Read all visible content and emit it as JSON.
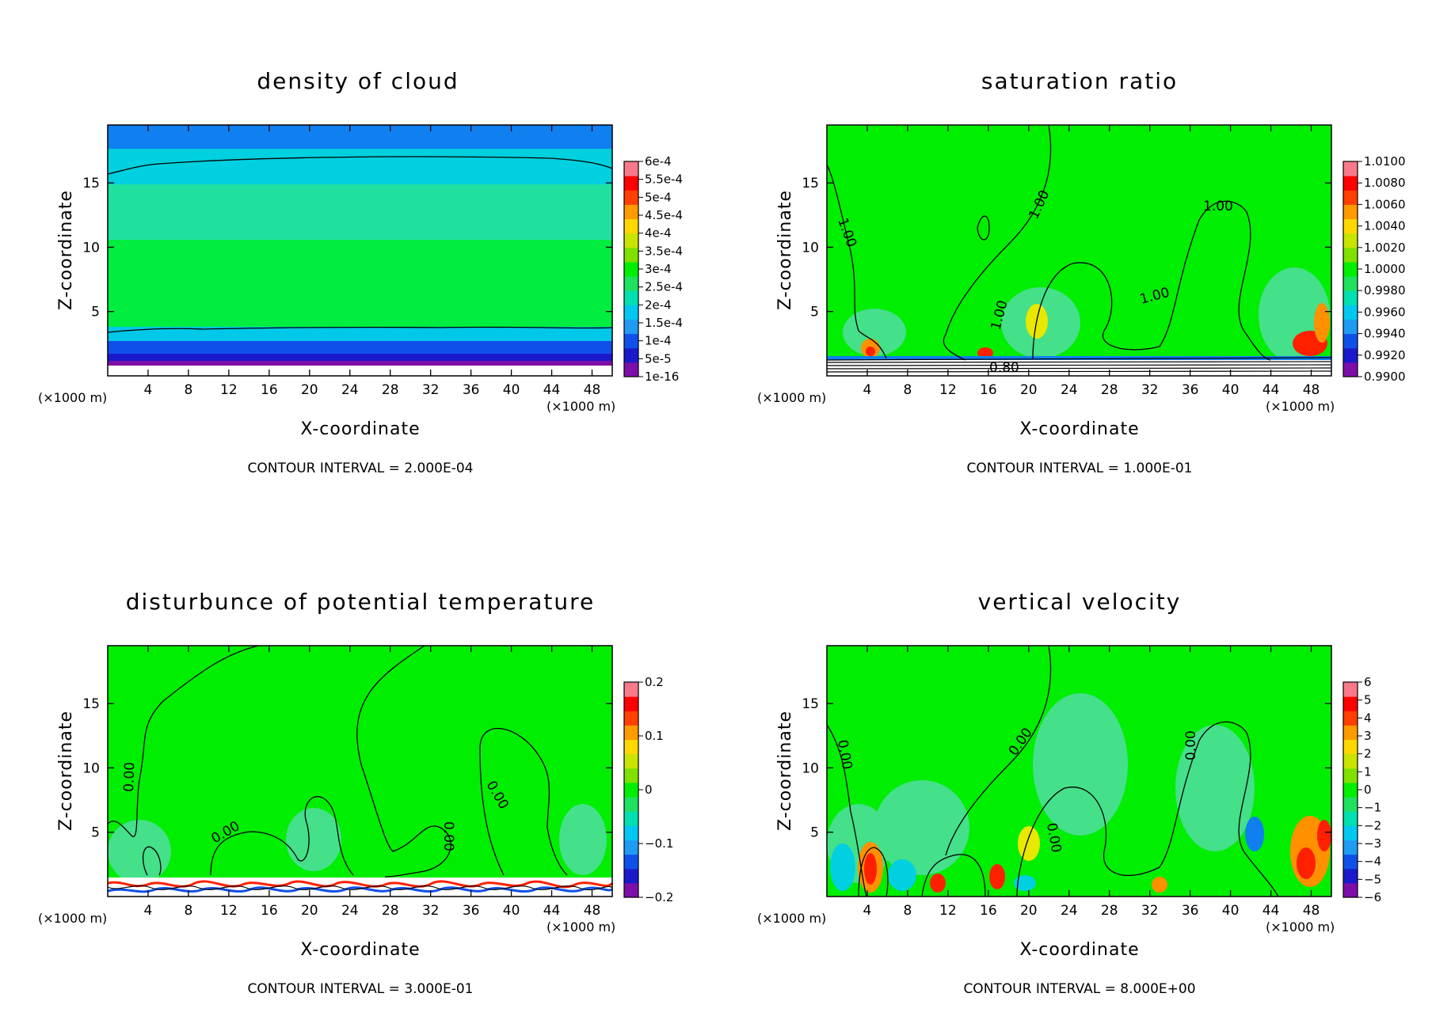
{
  "colors": {
    "field": "#00ee00",
    "light": "#44e08a",
    "cyan": "#00d0e0",
    "blue": "#1080f0",
    "navy": "#0000c0",
    "purple": "#7000b0",
    "yellow": "#e8e800",
    "orange": "#ff9000",
    "red": "#ff2000"
  },
  "colorbar_ramp": [
    "#7d0fa8",
    "#1a1acc",
    "#1050ea",
    "#1f9cf2",
    "#00c8f0",
    "#00e0b0",
    "#20e060",
    "#00ee00",
    "#80e000",
    "#c8e400",
    "#ffd800",
    "#ff9a00",
    "#ff4000",
    "#ff0000",
    "#f87a8a"
  ],
  "chart_data": [
    {
      "type": "heatmap",
      "title": "density of cloud",
      "xlabel": "X-coordinate",
      "ylabel": "Z-coordinate",
      "x_unit": "(×1000 m)",
      "x_ticks": [
        "4",
        "8",
        "12",
        "16",
        "20",
        "24",
        "28",
        "32",
        "36",
        "40",
        "44",
        "48"
      ],
      "x_tick_values": [
        4,
        8,
        12,
        16,
        20,
        24,
        28,
        32,
        36,
        40,
        44,
        48
      ],
      "y_ticks": [
        "5",
        "10",
        "15"
      ],
      "y_tick_values": [
        5,
        10,
        15
      ],
      "xlim": [
        0,
        50
      ],
      "ylim": [
        0,
        19.5
      ],
      "colorbar_labels": [
        "6e-4",
        "5.5e-4",
        "5e-4",
        "4.5e-4",
        "4e-4",
        "3.5e-4",
        "3e-4",
        "2.5e-4",
        "2e-4",
        "1.5e-4",
        "1e-4",
        "5e-5",
        "1e-16"
      ],
      "contour_interval": "CONTOUR INTERVAL = 2.000E-04",
      "contour_labels": []
    },
    {
      "type": "heatmap",
      "title": "saturation ratio",
      "xlabel": "X-coordinate",
      "ylabel": "Z-coordinate",
      "x_unit": "(×1000 m)",
      "x_ticks": [
        "4",
        "8",
        "12",
        "16",
        "20",
        "24",
        "28",
        "32",
        "36",
        "40",
        "44",
        "48"
      ],
      "x_tick_values": [
        4,
        8,
        12,
        16,
        20,
        24,
        28,
        32,
        36,
        40,
        44,
        48
      ],
      "y_ticks": [
        "5",
        "10",
        "15"
      ],
      "y_tick_values": [
        5,
        10,
        15
      ],
      "xlim": [
        0,
        50
      ],
      "ylim": [
        0,
        19.5
      ],
      "colorbar_labels": [
        "1.0100",
        "1.0080",
        "1.0060",
        "1.0040",
        "1.0020",
        "1.0000",
        "0.9980",
        "0.9960",
        "0.9940",
        "0.9920",
        "0.9900"
      ],
      "contour_interval": "CONTOUR INTERVAL = 1.000E-01",
      "contour_labels": [
        "1.00",
        "1.00",
        "1.00",
        "1.00",
        "1.00",
        "0.80"
      ]
    },
    {
      "type": "heatmap",
      "title": "disturbunce of potential temperature",
      "xlabel": "X-coordinate",
      "ylabel": "Z-coordinate",
      "x_unit": "(×1000 m)",
      "x_ticks": [
        "4",
        "8",
        "12",
        "16",
        "20",
        "24",
        "28",
        "32",
        "36",
        "40",
        "44",
        "48"
      ],
      "x_tick_values": [
        4,
        8,
        12,
        16,
        20,
        24,
        28,
        32,
        36,
        40,
        44,
        48
      ],
      "y_ticks": [
        "5",
        "10",
        "15"
      ],
      "y_tick_values": [
        5,
        10,
        15
      ],
      "xlim": [
        0,
        50
      ],
      "ylim": [
        0,
        19.5
      ],
      "colorbar_labels": [
        "0.2",
        "0.1",
        "0",
        "−0.1",
        "−0.2"
      ],
      "contour_interval": "CONTOUR INTERVAL = 3.000E-01",
      "contour_labels": [
        "0.00",
        "0.00",
        "0.00",
        "0.00"
      ]
    },
    {
      "type": "heatmap",
      "title": "vertical velocity",
      "xlabel": "X-coordinate",
      "ylabel": "Z-coordinate",
      "x_unit": "(×1000 m)",
      "x_ticks": [
        "4",
        "8",
        "12",
        "16",
        "20",
        "24",
        "28",
        "32",
        "36",
        "40",
        "44",
        "48"
      ],
      "x_tick_values": [
        4,
        8,
        12,
        16,
        20,
        24,
        28,
        32,
        36,
        40,
        44,
        48
      ],
      "y_ticks": [
        "5",
        "10",
        "15"
      ],
      "y_tick_values": [
        5,
        10,
        15
      ],
      "xlim": [
        0,
        50
      ],
      "ylim": [
        0,
        19.5
      ],
      "colorbar_labels": [
        "6",
        "5",
        "4",
        "3",
        "2",
        "1",
        "0",
        "−1",
        "−2",
        "−3",
        "−4",
        "−5",
        "−6"
      ],
      "contour_interval": "CONTOUR INTERVAL = 8.000E+00",
      "contour_labels": [
        "0.00",
        "0.00",
        "0.00",
        "0.00"
      ]
    }
  ]
}
